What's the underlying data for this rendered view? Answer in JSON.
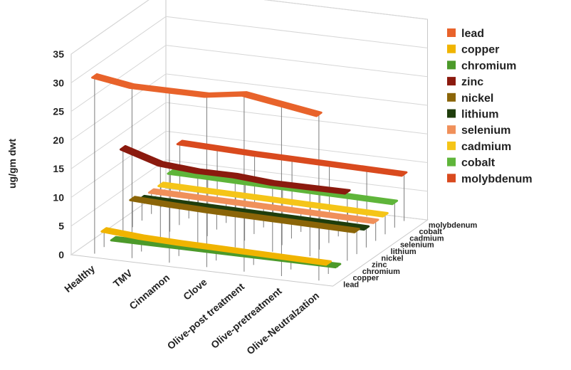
{
  "chart_data": {
    "type": "line",
    "ylabel": "ug/gm dwt",
    "ylim": [
      0,
      35
    ],
    "yticks": [
      "0",
      "5",
      "10",
      "15",
      "20",
      "25",
      "30",
      "35"
    ],
    "categories": [
      "Healthy",
      "TMV",
      "Cinnamon",
      "Clove",
      "Olive-post treatment",
      "Olive-pretreatment",
      "Olive-Neutralzation"
    ],
    "depth_labels": [
      "lead",
      "copper",
      "chromium",
      "zinc",
      "nickel",
      "lithium",
      "selenium",
      "cadmium",
      "cobalt",
      "molybdenum"
    ],
    "legend_position": "right",
    "series": [
      {
        "name": "lead",
        "color": "#e8632b",
        "values": [
          31,
          30,
          30,
          30,
          31,
          30,
          29
        ]
      },
      {
        "name": "copper",
        "color": "#f0b400",
        "values": [
          3,
          2.5,
          2.3,
          2.2,
          2.1,
          2.0,
          1.9
        ]
      },
      {
        "name": "chromium",
        "color": "#4c9a2a",
        "values": [
          0.3,
          0.3,
          0.3,
          0.3,
          0.3,
          0.3,
          0.3
        ]
      },
      {
        "name": "zinc",
        "color": "#8b1a0e",
        "values": [
          15,
          13,
          12.5,
          12.5,
          12,
          12,
          12
        ]
      },
      {
        "name": "nickel",
        "color": "#8b6508",
        "values": [
          5,
          4.7,
          4.5,
          4.4,
          4.3,
          4.2,
          4.1
        ]
      },
      {
        "name": "lithium",
        "color": "#1f3d0c",
        "values": [
          4,
          3.9,
          3.8,
          3.7,
          3.6,
          3.5,
          3.4
        ]
      },
      {
        "name": "selenium",
        "color": "#f0905a",
        "values": [
          4,
          3.9,
          3.8,
          3.7,
          3.6,
          3.5,
          3.4
        ]
      },
      {
        "name": "cadmium",
        "color": "#f5c518",
        "values": [
          4,
          3.9,
          3.8,
          3.7,
          3.6,
          3.5,
          3.4
        ]
      },
      {
        "name": "cobalt",
        "color": "#5fb53a",
        "values": [
          5,
          4.9,
          4.8,
          4.7,
          4.6,
          4.5,
          4.4
        ]
      },
      {
        "name": "molybdenum",
        "color": "#d94a1e",
        "values": [
          9,
          8.8,
          8.6,
          8.5,
          8.4,
          8.3,
          8.2
        ]
      }
    ]
  }
}
